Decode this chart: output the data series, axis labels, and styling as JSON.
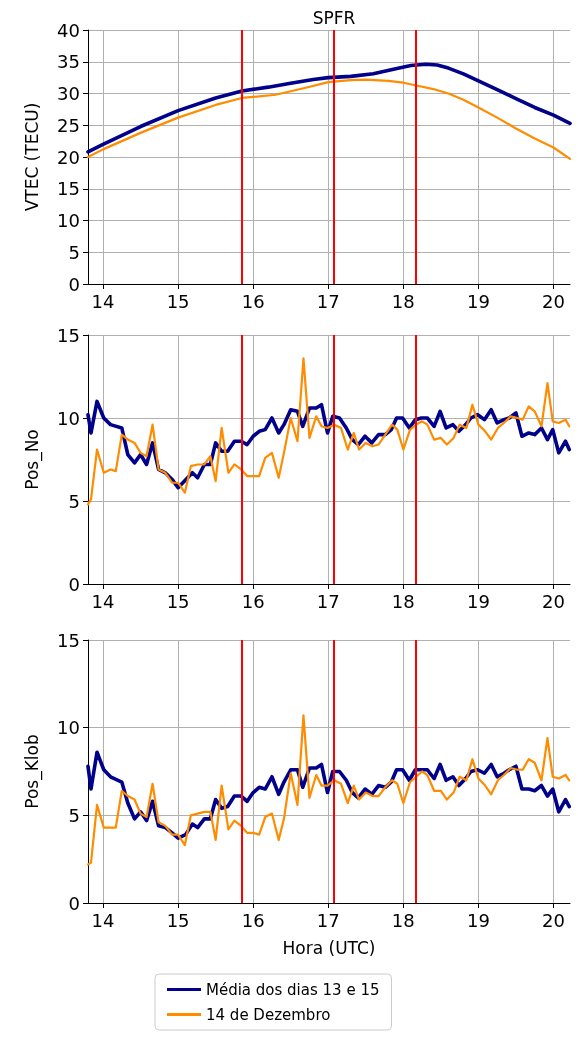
{
  "chart_data": [
    {
      "type": "line",
      "title": "SPFR",
      "ylabel": "VTEC (TECU)",
      "xlim": [
        13.8,
        20.22
      ],
      "xticks": [
        14,
        15,
        16,
        17,
        18,
        19,
        20
      ],
      "ylim": [
        0,
        40
      ],
      "yticks": [
        0,
        5,
        10,
        15,
        20,
        25,
        30,
        35,
        40
      ],
      "grid": true,
      "marker": "none",
      "line_style": "solid",
      "ref_lines": [
        {
          "axis": "x",
          "value": 15.85,
          "color": "#ff0000"
        },
        {
          "axis": "x",
          "value": 17.07,
          "color": "#ff0000"
        },
        {
          "axis": "x",
          "value": 18.16,
          "color": "#ff0000"
        }
      ],
      "series": [
        {
          "color": "#00008b",
          "x": [
            13.8,
            14,
            14.5,
            15,
            15.5,
            15.85,
            16.2,
            16.5,
            16.8,
            17,
            17.3,
            17.6,
            17.9,
            18.1,
            18.3,
            18.45,
            18.6,
            18.8,
            19,
            19.25,
            19.5,
            19.75,
            20,
            20.22
          ],
          "values": [
            20.8,
            22,
            24.8,
            27.3,
            29.3,
            30.4,
            31,
            31.6,
            32.2,
            32.5,
            32.7,
            33.1,
            33.9,
            34.4,
            34.6,
            34.5,
            34,
            33.1,
            32,
            30.6,
            29.2,
            27.8,
            26.6,
            25.3
          ]
        },
        {
          "color": "#ff8c00",
          "x": [
            13.8,
            14,
            14.5,
            15,
            15.5,
            15.85,
            16.3,
            16.7,
            17,
            17.3,
            17.5,
            17.8,
            18,
            18.16,
            18.4,
            18.6,
            18.8,
            19,
            19.25,
            19.5,
            19.75,
            20,
            20.22
          ],
          "values": [
            20,
            21.2,
            23.8,
            26.2,
            28.2,
            29.3,
            29.8,
            30.9,
            31.8,
            32.1,
            32.2,
            32,
            31.7,
            31.3,
            30.7,
            30,
            29,
            27.8,
            26.2,
            24.5,
            22.9,
            21.5,
            19.7
          ]
        }
      ]
    },
    {
      "type": "line",
      "ylabel": "Pos_No",
      "xlim": [
        13.8,
        20.22
      ],
      "xticks": [
        14,
        15,
        16,
        17,
        18,
        19,
        20
      ],
      "ylim": [
        0,
        15
      ],
      "yticks": [
        0,
        5,
        10,
        15
      ],
      "grid": true,
      "marker": "none",
      "line_style": "solid",
      "ref_lines": [
        {
          "axis": "x",
          "value": 15.85,
          "color": "#ff0000"
        },
        {
          "axis": "x",
          "value": 17.07,
          "color": "#ff0000"
        },
        {
          "axis": "x",
          "value": 18.16,
          "color": "#ff0000"
        }
      ],
      "series": [
        {
          "color": "#00008b",
          "x": [
            13.8,
            13.84,
            13.92,
            14.01,
            14.1,
            14.25,
            14.33,
            14.42,
            14.5,
            14.58,
            14.66,
            14.74,
            14.83,
            14.92,
            15,
            15.19,
            15.26,
            15.35,
            15.43,
            15.5,
            15.58,
            15.66,
            15.75,
            15.84,
            15.92,
            16,
            16.08,
            16.16,
            16.25,
            16.34,
            16.41,
            16.5,
            16.59,
            16.66,
            16.75,
            16.84,
            16.91,
            16.99,
            17.06,
            17.15,
            17.24,
            17.32,
            17.4,
            17.49,
            17.58,
            17.67,
            17.76,
            17.84,
            17.91,
            17.99,
            18.08,
            18.16,
            18.24,
            18.32,
            18.41,
            18.49,
            18.57,
            18.66,
            18.74,
            18.83,
            18.9,
            18.99,
            19.08,
            19.17,
            19.25,
            19.34,
            19.41,
            19.5,
            19.58,
            19.67,
            19.75,
            19.84,
            19.92,
            19.99,
            20.07,
            20.16,
            20.21
          ],
          "values": [
            10.2,
            9.1,
            11,
            10,
            9.6,
            9.4,
            7.8,
            7.3,
            7.8,
            7.2,
            8.5,
            6.9,
            6.7,
            6.3,
            5.8,
            6.7,
            6.4,
            7.2,
            7.2,
            8.5,
            8,
            8,
            8.6,
            8.6,
            8.4,
            8.9,
            9.2,
            9.3,
            10,
            9.1,
            9.6,
            10.5,
            10.4,
            9.5,
            10.6,
            10.6,
            10.8,
            9.1,
            10.1,
            10,
            9.4,
            8.7,
            8.4,
            8.9,
            8.5,
            9,
            9,
            9.3,
            10,
            10,
            9.4,
            9.9,
            10,
            10,
            9.5,
            10.4,
            9.4,
            9.6,
            9.2,
            9.6,
            10,
            10.2,
            9.9,
            10.5,
            9.7,
            9.9,
            10,
            10.3,
            8.9,
            9.1,
            9,
            9.4,
            8.7,
            9.3,
            7.9,
            8.6,
            8.1
          ]
        },
        {
          "color": "#ff8c00",
          "x": [
            13.8,
            13.84,
            13.92,
            14.01,
            14.1,
            14.17,
            14.25,
            14.33,
            14.42,
            14.5,
            14.58,
            14.66,
            14.74,
            14.83,
            14.92,
            15,
            15.09,
            15.17,
            15.26,
            15.35,
            15.43,
            15.5,
            15.58,
            15.67,
            15.75,
            15.84,
            15.92,
            16,
            16.08,
            16.16,
            16.25,
            16.34,
            16.41,
            16.5,
            16.59,
            16.67,
            16.75,
            16.84,
            16.91,
            16.99,
            17.08,
            17.17,
            17.26,
            17.34,
            17.41,
            17.5,
            17.59,
            17.67,
            17.76,
            17.85,
            17.92,
            18,
            18.09,
            18.17,
            18.25,
            18.32,
            18.41,
            18.5,
            18.58,
            18.67,
            18.75,
            18.84,
            18.92,
            19,
            19.09,
            19.17,
            19.26,
            19.34,
            19.43,
            19.52,
            19.59,
            19.67,
            19.75,
            19.84,
            19.92,
            19.99,
            20.07,
            20.16,
            20.21
          ],
          "values": [
            4.8,
            5.1,
            8.1,
            6.7,
            6.9,
            6.8,
            9,
            8.7,
            8.5,
            7.9,
            7.7,
            9.6,
            6.9,
            6.7,
            6.1,
            6.1,
            5.5,
            7.1,
            7.2,
            7.2,
            7.7,
            6.2,
            9.4,
            6.7,
            7.2,
            6.9,
            6.5,
            6.5,
            6.5,
            7.6,
            7.9,
            6.4,
            7.9,
            10,
            8.6,
            13.6,
            8.8,
            10.1,
            9.5,
            9.4,
            9.6,
            9.4,
            8.1,
            9.1,
            8.1,
            8.5,
            8.3,
            8.4,
            9,
            9.6,
            9.3,
            8.1,
            9.3,
            9.6,
            9.8,
            9.6,
            8.7,
            8.8,
            8.4,
            8.8,
            9.6,
            9.4,
            10.8,
            9.6,
            9.2,
            8.7,
            9.4,
            9.7,
            10.1,
            10,
            9.9,
            10.7,
            10.4,
            9.5,
            12.1,
            9.8,
            9.7,
            9.9,
            9.5
          ]
        }
      ]
    },
    {
      "type": "line",
      "ylabel": "Pos_Klob",
      "xlabel": "Hora (UTC)",
      "xlim": [
        13.8,
        20.22
      ],
      "xticks": [
        14,
        15,
        16,
        17,
        18,
        19,
        20
      ],
      "ylim": [
        0,
        15
      ],
      "yticks": [
        0,
        5,
        10,
        15
      ],
      "grid": true,
      "marker": "none",
      "line_style": "solid",
      "legend": "bottom",
      "ref_lines": [
        {
          "axis": "x",
          "value": 15.85,
          "color": "#ff0000"
        },
        {
          "axis": "x",
          "value": 17.07,
          "color": "#ff0000"
        },
        {
          "axis": "x",
          "value": 18.16,
          "color": "#ff0000"
        }
      ],
      "series": [
        {
          "name": "Média dos dias 13 e 15",
          "color": "#00008b",
          "x": [
            13.8,
            13.84,
            13.92,
            14.01,
            14.1,
            14.25,
            14.33,
            14.42,
            14.5,
            14.58,
            14.66,
            14.74,
            14.83,
            14.92,
            15,
            15.1,
            15.19,
            15.26,
            15.35,
            15.43,
            15.5,
            15.58,
            15.66,
            15.75,
            15.84,
            15.92,
            16,
            16.08,
            16.16,
            16.25,
            16.34,
            16.41,
            16.5,
            16.59,
            16.66,
            16.75,
            16.84,
            16.91,
            16.99,
            17.06,
            17.15,
            17.24,
            17.32,
            17.4,
            17.49,
            17.58,
            17.67,
            17.76,
            17.84,
            17.91,
            17.99,
            18.08,
            18.16,
            18.24,
            18.32,
            18.41,
            18.49,
            18.57,
            18.66,
            18.74,
            18.83,
            18.9,
            18.99,
            19.08,
            19.17,
            19.25,
            19.34,
            19.41,
            19.5,
            19.58,
            19.67,
            19.75,
            19.84,
            19.92,
            19.99,
            20.07,
            20.16,
            20.21
          ],
          "values": [
            7.8,
            6.5,
            8.6,
            7.6,
            7.2,
            6.9,
            5.7,
            4.8,
            5.2,
            4.7,
            5.8,
            4.4,
            4.3,
            4,
            3.7,
            3.9,
            4.5,
            4.3,
            4.8,
            4.8,
            5.9,
            5.4,
            5.5,
            6.1,
            6.1,
            5.8,
            6.3,
            6.6,
            6.5,
            7.2,
            6.2,
            6.9,
            7.6,
            7.6,
            6.6,
            7.7,
            7.7,
            7.9,
            6.3,
            7.5,
            7.5,
            7,
            6.3,
            6,
            6.5,
            6.2,
            6.7,
            6.6,
            6.9,
            7.6,
            7.6,
            7,
            7.6,
            7.6,
            7.6,
            7.1,
            7.9,
            7,
            7.2,
            6.7,
            7.1,
            7.5,
            7.6,
            7.4,
            7.9,
            7.2,
            7.4,
            7.6,
            7.8,
            6.5,
            6.5,
            6.4,
            6.7,
            6.1,
            6.5,
            5.2,
            5.9,
            5.5
          ]
        },
        {
          "name": "14 de Dezembro",
          "color": "#ff8c00",
          "x": [
            13.8,
            13.84,
            13.92,
            14.01,
            14.1,
            14.17,
            14.25,
            14.33,
            14.42,
            14.5,
            14.58,
            14.66,
            14.74,
            14.83,
            14.92,
            15,
            15.09,
            15.17,
            15.26,
            15.35,
            15.43,
            15.5,
            15.58,
            15.67,
            15.75,
            15.84,
            15.92,
            16,
            16.08,
            16.16,
            16.25,
            16.34,
            16.41,
            16.5,
            16.59,
            16.67,
            16.75,
            16.84,
            16.91,
            16.99,
            17.08,
            17.17,
            17.26,
            17.34,
            17.41,
            17.5,
            17.59,
            17.67,
            17.76,
            17.85,
            17.92,
            18,
            18.09,
            18.17,
            18.25,
            18.32,
            18.41,
            18.5,
            18.58,
            18.67,
            18.75,
            18.84,
            18.92,
            19,
            19.09,
            19.17,
            19.26,
            19.34,
            19.43,
            19.52,
            19.59,
            19.67,
            19.75,
            19.84,
            19.92,
            19.99,
            20.07,
            20.16,
            20.21
          ],
          "values": [
            2.2,
            2.3,
            5.6,
            4.3,
            4.3,
            4.3,
            6.4,
            6.1,
            5.9,
            5.1,
            4.9,
            6.8,
            4.6,
            4.4,
            3.9,
            3.9,
            3.3,
            5,
            5.1,
            5.2,
            5.2,
            3.6,
            6.7,
            4.2,
            4.7,
            4.4,
            4,
            4,
            3.9,
            4.9,
            5.1,
            3.6,
            4.8,
            7.4,
            5.6,
            10.7,
            6,
            7.3,
            6.7,
            6.7,
            7,
            6.8,
            5.7,
            6.7,
            5.9,
            6.3,
            6.1,
            6.1,
            6.6,
            7,
            6.8,
            5.7,
            6.9,
            7.2,
            7.5,
            7.3,
            6.4,
            6.4,
            5.9,
            6.3,
            7.2,
            7,
            8.2,
            7.1,
            6.7,
            6.2,
            7,
            7.3,
            7.7,
            7.6,
            7.6,
            8.2,
            8,
            7,
            9.4,
            7.2,
            7.1,
            7.3,
            7
          ]
        }
      ]
    }
  ]
}
